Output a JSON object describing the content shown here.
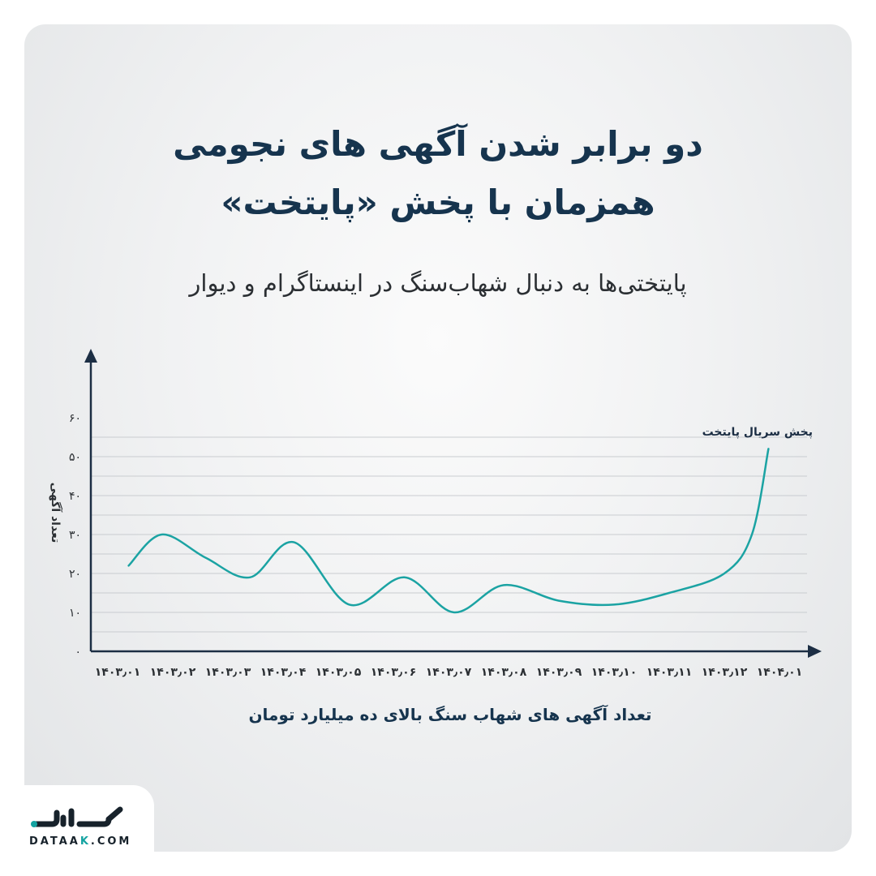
{
  "title_lines": [
    "دو برابر شدن آگهی های نجومی",
    "همزمان با پخش «پایتخت»"
  ],
  "subtitle": "پایتختی‌ها به دنبال شهاب‌سنگ در اینستاگرام و دیوار",
  "logo": {
    "part1": "DATAA",
    "part2": "K",
    "part3": ".COM"
  },
  "chart_data": {
    "type": "line",
    "title": "دو برابر شدن آگهی های نجومی همزمان با پخش «پایتخت»",
    "xlabel": "تعداد آگهی های شهاب سنگ بالای ده میلیارد تومان",
    "ylabel": "تعداد آگهی",
    "categories": [
      "۱۴۰۳٫۰۱",
      "۱۴۰۳٫۰۲",
      "۱۴۰۳٫۰۳",
      "۱۴۰۳٫۰۴",
      "۱۴۰۳٫۰۵",
      "۱۴۰۳٫۰۶",
      "۱۴۰۳٫۰۷",
      "۱۴۰۳٫۰۸",
      "۱۴۰۳٫۰۹",
      "۱۴۰۳٫۱۰",
      "۱۴۰۳٫۱۱",
      "۱۴۰۳٫۱۲",
      "۱۴۰۴٫۰۱"
    ],
    "yticks": [
      0,
      10,
      20,
      30,
      40,
      50,
      60
    ],
    "ytick_labels": [
      "۰",
      "۱۰",
      "۲۰",
      "۳۰",
      "۴۰",
      "۵۰",
      "۶۰"
    ],
    "ylim": [
      0,
      60
    ],
    "series": [
      {
        "name": "",
        "color": "#1ba3a3",
        "points": [
          {
            "x": 0.2,
            "y": 22
          },
          {
            "x": 0.8,
            "y": 30
          },
          {
            "x": 1.6,
            "y": 24
          },
          {
            "x": 2.4,
            "y": 19
          },
          {
            "x": 3.2,
            "y": 28
          },
          {
            "x": 4.2,
            "y": 12
          },
          {
            "x": 5.2,
            "y": 19
          },
          {
            "x": 6.1,
            "y": 10
          },
          {
            "x": 7.0,
            "y": 17
          },
          {
            "x": 8.0,
            "y": 13
          },
          {
            "x": 9.0,
            "y": 12
          },
          {
            "x": 10.0,
            "y": 15
          },
          {
            "x": 11.0,
            "y": 20
          },
          {
            "x": 11.5,
            "y": 30
          },
          {
            "x": 11.8,
            "y": 52
          }
        ]
      }
    ],
    "annotations": [
      {
        "text": "پخش سریال پایتخت",
        "x": 11.8,
        "y": 52
      }
    ],
    "grid": true,
    "legend": "none"
  }
}
